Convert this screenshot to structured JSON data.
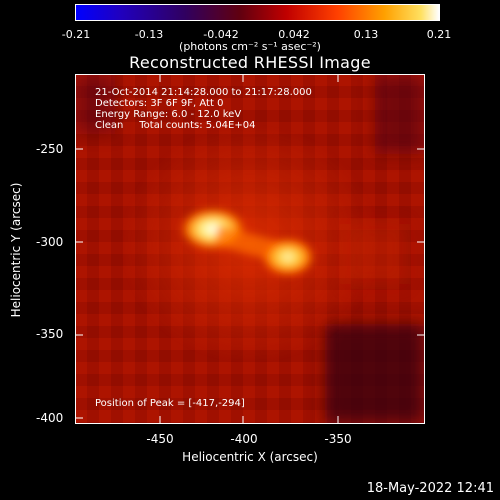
{
  "colorbar": {
    "ticks": [
      "-0.21",
      "-0.13",
      "-0.042",
      "0.042",
      "0.13",
      "0.21"
    ],
    "units": "(photons cm⁻² s⁻¹ asec⁻²)",
    "colors": [
      "#0000ff",
      "#000000",
      "#8b0000",
      "#ff0000",
      "#ffb000",
      "#ffffff"
    ]
  },
  "title": "Reconstructed RHESSI Image",
  "info": {
    "line1": "21-Oct-2014 21:14:28.000 to 21:17:28.000",
    "line2": "Detectors: 3F 6F 9F, Att 0",
    "line3": "Energy Range: 6.0 - 12.0 keV",
    "line4": "Clean     Total counts: 5.04E+04",
    "peak": "Position of Peak = [-417,-294]"
  },
  "axes": {
    "xlabel": "Heliocentric X (arcsec)",
    "ylabel": "Heliocentric Y (arcsec)",
    "xticks": [
      "-450",
      "-400",
      "-350"
    ],
    "yticks": [
      "-250",
      "-300",
      "-350",
      "-400"
    ]
  },
  "footer": {
    "date": "18-May-2022 12:41"
  }
}
